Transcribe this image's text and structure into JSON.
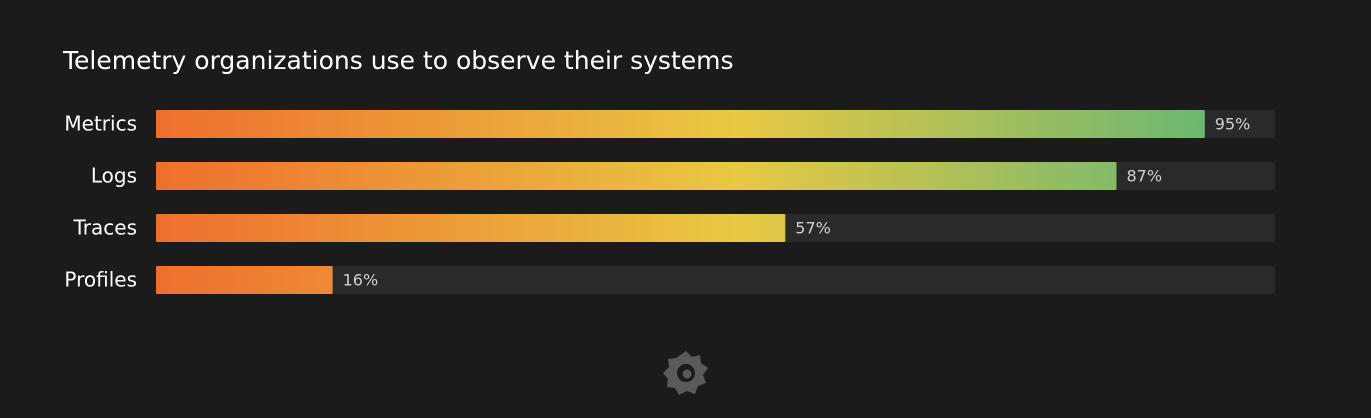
{
  "chart_data": {
    "type": "bar",
    "orientation": "horizontal",
    "title": "Telemetry organizations use to observe their systems",
    "categories": [
      "Metrics",
      "Logs",
      "Traces",
      "Profiles"
    ],
    "values": [
      95,
      87,
      57,
      16
    ],
    "value_labels": [
      "95%",
      "87%",
      "57%",
      "16%"
    ],
    "colors": [
      "#ef6f2e",
      "#e9c843",
      "#6ab772"
    ],
    "xlim": [
      0,
      100
    ]
  }
}
